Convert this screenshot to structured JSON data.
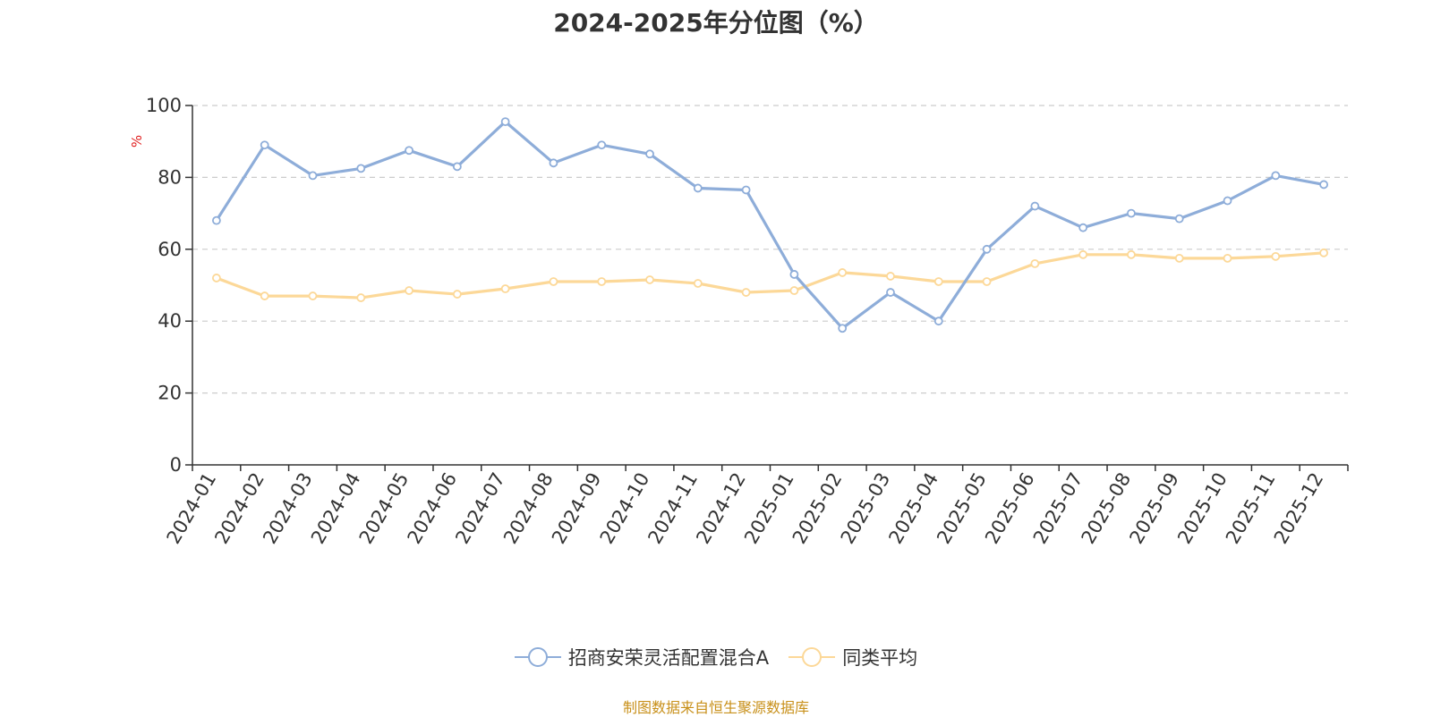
{
  "title": "2024-2025年分位图（%）",
  "source_note": "制图数据来自恒生聚源数据库",
  "colors": {
    "series_main": "#8eadd9",
    "series_avg": "#fcd898",
    "axis": "#333333",
    "grid": "#cccccc",
    "unit_label": "#e02020",
    "source_note": "#c8901a",
    "text": "#333333"
  },
  "chart_data": {
    "type": "line",
    "title": "2024-2025年分位图（%）",
    "ylabel": "%",
    "ylim": [
      0,
      100
    ],
    "yticks": [
      0,
      20,
      40,
      60,
      80,
      100
    ],
    "grid": true,
    "legend_position": "bottom",
    "categories": [
      "2024-01",
      "2024-02",
      "2024-03",
      "2024-04",
      "2024-05",
      "2024-06",
      "2024-07",
      "2024-08",
      "2024-09",
      "2024-10",
      "2024-11",
      "2024-12",
      "2025-01",
      "2025-02",
      "2025-03",
      "2025-04",
      "2025-05",
      "2025-06",
      "2025-07",
      "2025-08",
      "2025-09",
      "2025-10",
      "2025-11",
      "2025-12"
    ],
    "series": [
      {
        "name": "招商安荣灵活配置混合A",
        "values": [
          68,
          89,
          80.5,
          82.5,
          87.5,
          83,
          95.5,
          84,
          89,
          86.5,
          77,
          76.5,
          53,
          38,
          48,
          40,
          60,
          72,
          66,
          70,
          68.5,
          73.5,
          80.5,
          78
        ]
      },
      {
        "name": "同类平均",
        "values": [
          52,
          47,
          47,
          46.5,
          48.5,
          47.5,
          49,
          51,
          51,
          51.5,
          50.5,
          48,
          48.5,
          53.5,
          52.5,
          51,
          51,
          56,
          58.5,
          58.5,
          57.5,
          57.5,
          58,
          59
        ]
      }
    ]
  }
}
